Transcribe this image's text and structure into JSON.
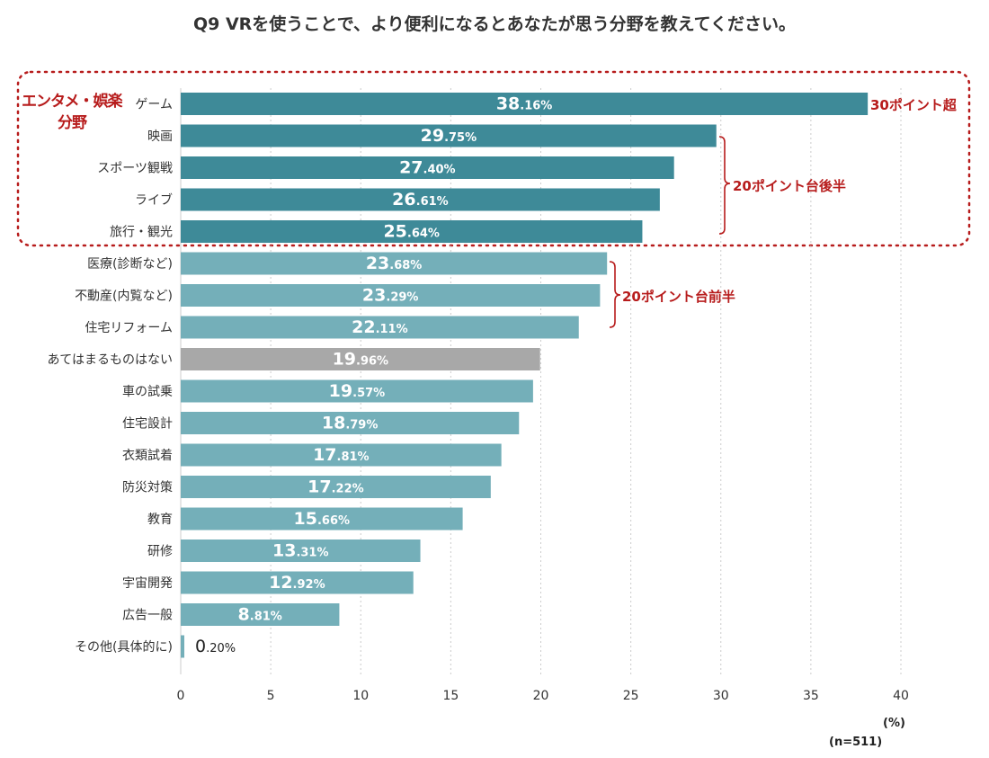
{
  "title": "Q9 VRを使うことで、より便利になるとあなたが思う分野を教えてください。",
  "unit_label": "(%)",
  "sample_label": "(n=511)",
  "group_label": {
    "line1": "エンタメ・娯楽",
    "line2": "分野"
  },
  "annotations": {
    "over30": "30ポイント超",
    "late20s": "20ポイント台後半",
    "early20s": "20ポイント台前半"
  },
  "colors": {
    "dark": "#3e8a98",
    "light": "#74afb9",
    "gray": "#a8a8a8",
    "accent": "#b71c1c",
    "grid": "#cccccc"
  },
  "chart_data": {
    "type": "bar",
    "orientation": "horizontal",
    "title": "Q9 VRを使うことで、より便利になるとあなたが思う分野を教えてください。",
    "xlabel": "(%)",
    "ylabel": "",
    "xlim": [
      0,
      40
    ],
    "xticks": [
      0,
      5,
      10,
      15,
      20,
      25,
      30,
      35,
      40
    ],
    "grid": true,
    "categories": [
      "ゲーム",
      "映画",
      "スポーツ観戦",
      "ライブ",
      "旅行・観光",
      "医療(診断など)",
      "不動産(内覧など)",
      "住宅リフォーム",
      "あてはまるものはない",
      "車の試乗",
      "住宅設計",
      "衣類試着",
      "防災対策",
      "教育",
      "研修",
      "宇宙開発",
      "広告一般",
      "その他(具体的に)"
    ],
    "values": [
      38.16,
      29.75,
      27.4,
      26.61,
      25.64,
      23.68,
      23.29,
      22.11,
      19.96,
      19.57,
      18.79,
      17.81,
      17.22,
      15.66,
      13.31,
      12.92,
      8.81,
      0.2
    ],
    "color_group": [
      "dark",
      "dark",
      "dark",
      "dark",
      "dark",
      "light",
      "light",
      "light",
      "gray",
      "light",
      "light",
      "light",
      "light",
      "light",
      "light",
      "light",
      "light",
      "light"
    ],
    "value_labels": [
      {
        "int": "38",
        "dec": ".16%"
      },
      {
        "int": "29",
        "dec": ".75%"
      },
      {
        "int": "27",
        "dec": ".40%"
      },
      {
        "int": "26",
        "dec": ".61%"
      },
      {
        "int": "25",
        "dec": ".64%"
      },
      {
        "int": "23",
        "dec": ".68%"
      },
      {
        "int": "23",
        "dec": ".29%"
      },
      {
        "int": "22",
        "dec": ".11%"
      },
      {
        "int": "19",
        "dec": ".96%"
      },
      {
        "int": "19",
        "dec": ".57%"
      },
      {
        "int": "18",
        "dec": ".79%"
      },
      {
        "int": "17",
        "dec": ".81%"
      },
      {
        "int": "17",
        "dec": ".22%"
      },
      {
        "int": "15",
        "dec": ".66%"
      },
      {
        "int": "13",
        "dec": ".31%"
      },
      {
        "int": "12",
        "dec": ".92%"
      },
      {
        "int": "8",
        "dec": ".81%"
      },
      {
        "int": "0",
        "dec": ".20%"
      }
    ],
    "sample_size": "n=511"
  }
}
